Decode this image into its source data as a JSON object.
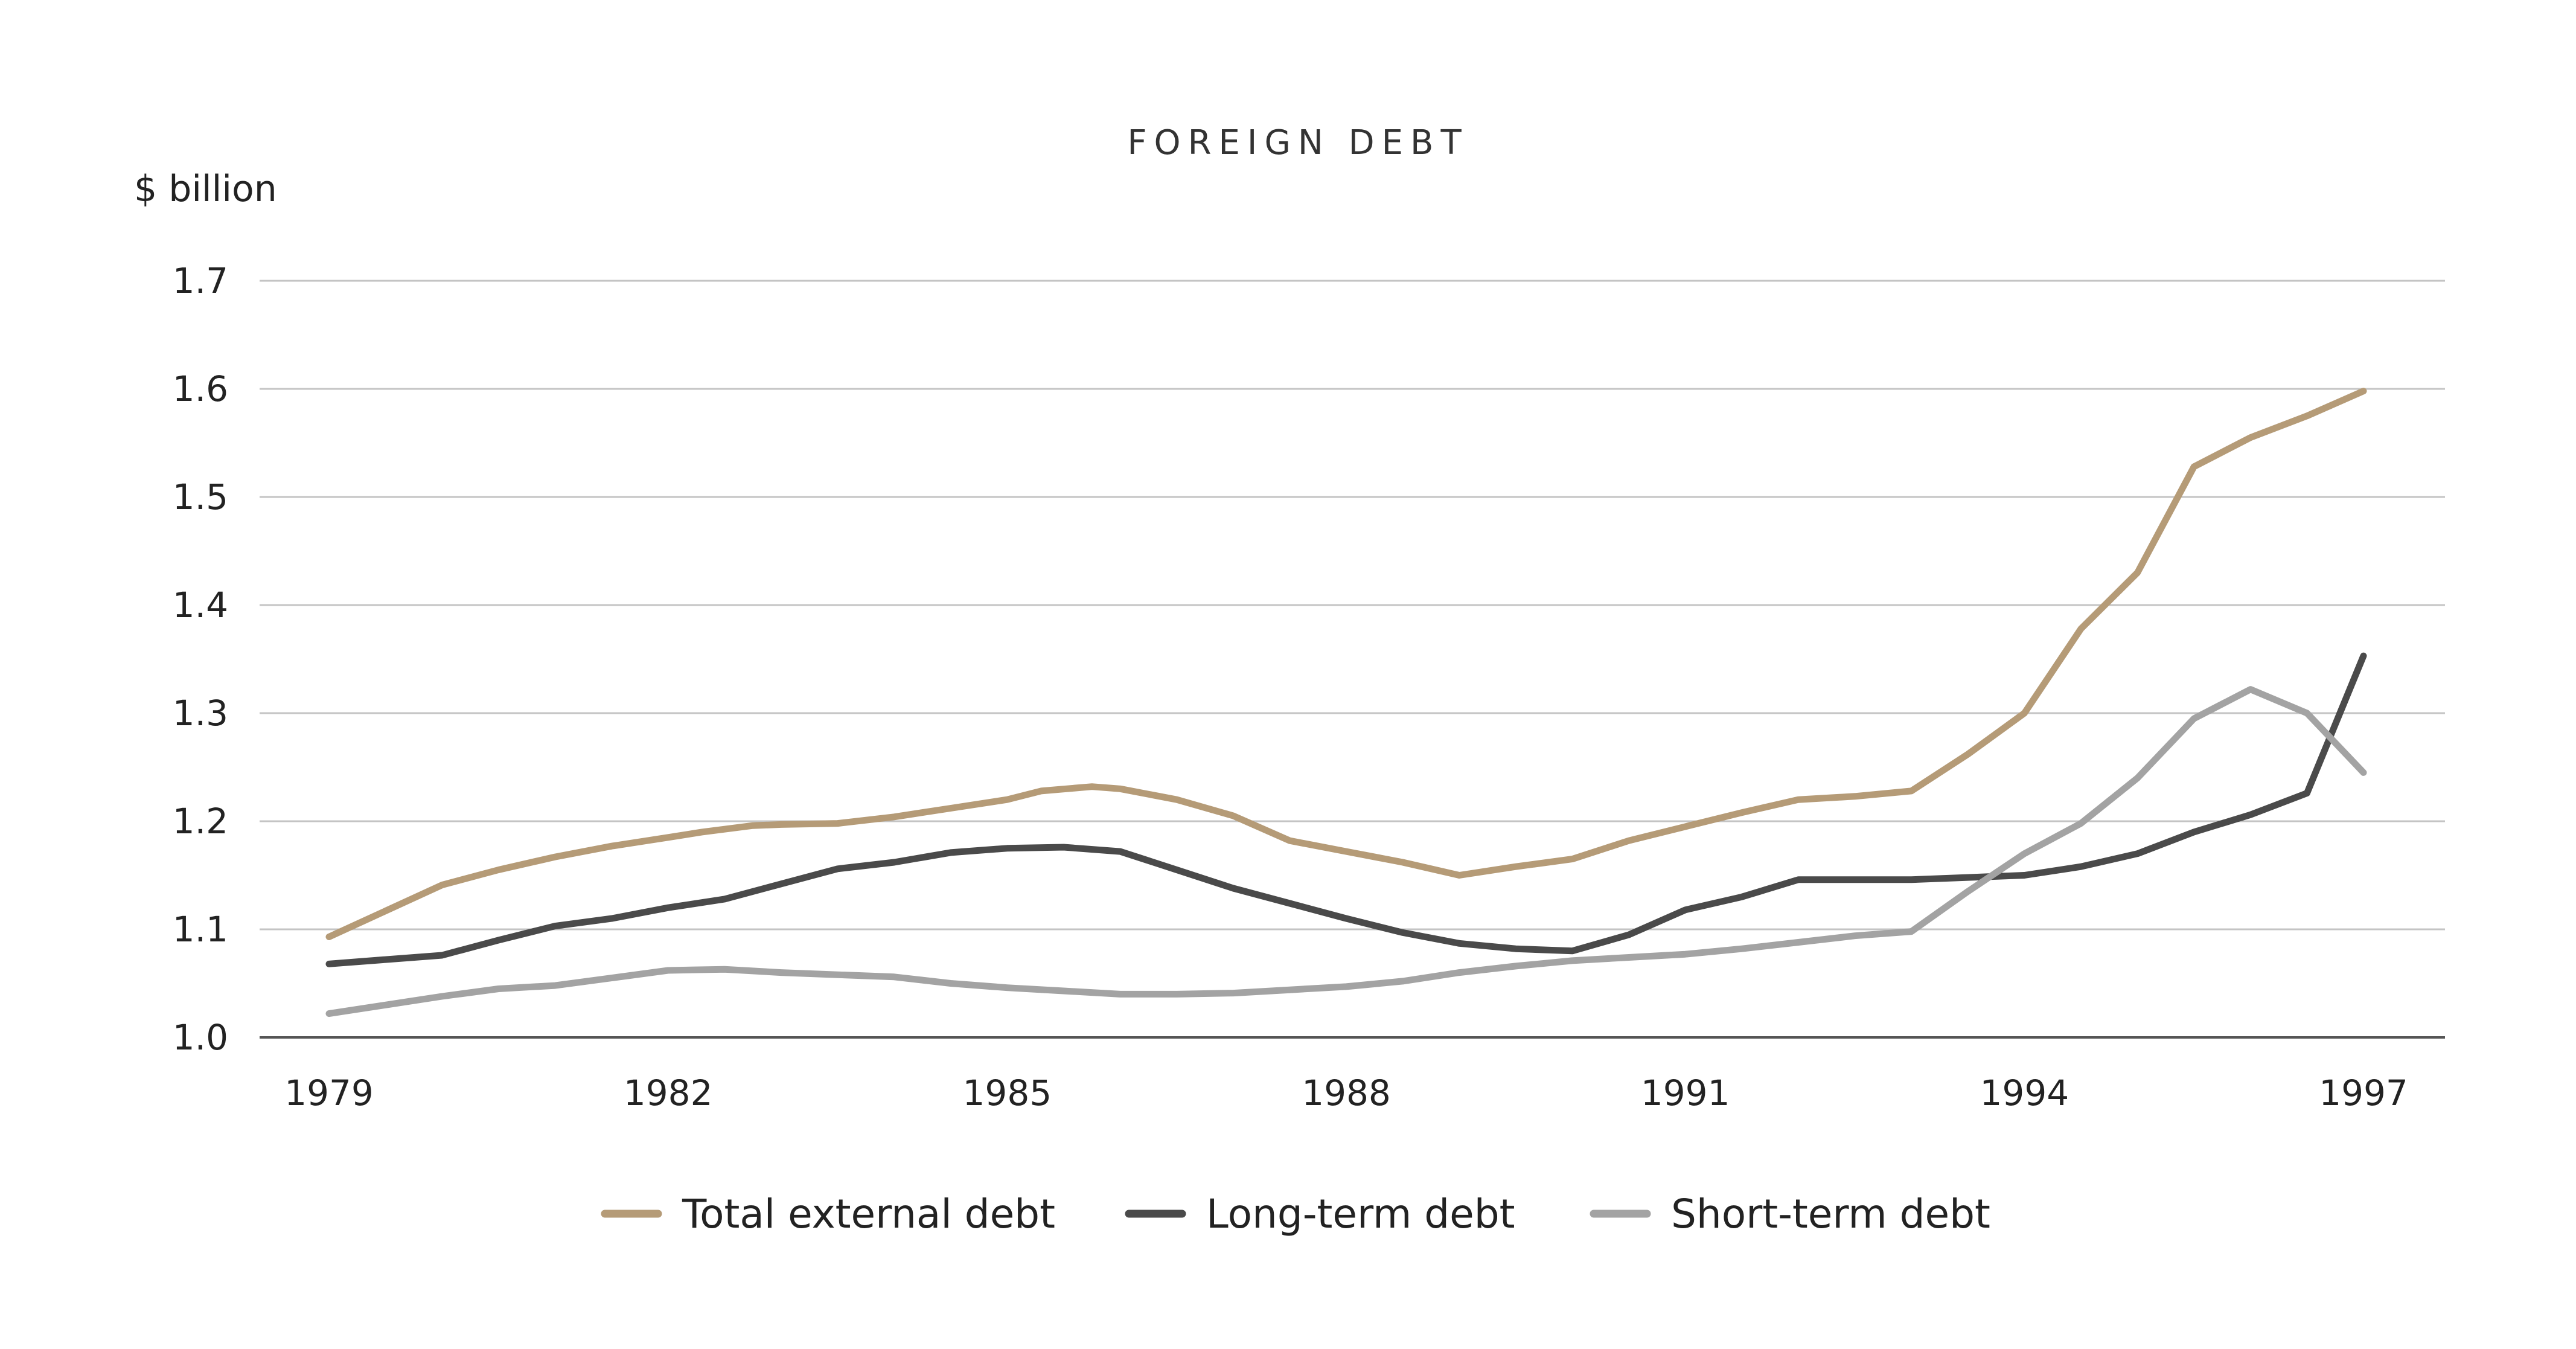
{
  "chart_data": {
    "type": "line",
    "title": "FOREIGN DEBT",
    "ylabel": "$ billion",
    "xlabel": "",
    "ylim": [
      1.0,
      1.7
    ],
    "yticks": [
      "1.0",
      "1.1",
      "1.2",
      "1.3",
      "1.4",
      "1.5",
      "1.6",
      "1.7"
    ],
    "xlim": [
      1979,
      1997
    ],
    "xticks": [
      "1979",
      "1982",
      "1985",
      "1988",
      "1991",
      "1994",
      "1997"
    ],
    "grid": true,
    "legend_position": "bottom",
    "series": [
      {
        "name": "Total external debt",
        "color": "#b59b77",
        "x": [
          1979,
          1980,
          1980.5,
          1981,
          1981.5,
          1982,
          1982.3,
          1982.75,
          1983,
          1983.5,
          1984,
          1984.5,
          1985,
          1985.3,
          1985.75,
          1986,
          1986.5,
          1987,
          1987.5,
          1988,
          1988.5,
          1989,
          1989.5,
          1990,
          1990.5,
          1991,
          1991.5,
          1992,
          1992.5,
          1993,
          1993.5,
          1994,
          1994.5,
          1995,
          1995.5,
          1996,
          1996.5,
          1997
        ],
        "values": [
          1.093,
          1.141,
          1.155,
          1.167,
          1.177,
          1.185,
          1.19,
          1.196,
          1.197,
          1.198,
          1.204,
          1.212,
          1.22,
          1.228,
          1.232,
          1.23,
          1.22,
          1.205,
          1.182,
          1.172,
          1.162,
          1.15,
          1.158,
          1.165,
          1.182,
          1.195,
          1.208,
          1.22,
          1.223,
          1.228,
          1.262,
          1.3,
          1.378,
          1.43,
          1.528,
          1.555,
          1.575,
          1.598
        ]
      },
      {
        "name": "Long-term debt",
        "color": "#4a4a4a",
        "x": [
          1979,
          1979.5,
          1980,
          1980.5,
          1981,
          1981.5,
          1982,
          1982.5,
          1983,
          1983.5,
          1984,
          1984.5,
          1985,
          1985.5,
          1986,
          1986.5,
          1987,
          1987.5,
          1988,
          1988.5,
          1989,
          1989.5,
          1990,
          1990.5,
          1991,
          1991.5,
          1992,
          1992.5,
          1993,
          1993.5,
          1994,
          1994.5,
          1995,
          1995.5,
          1996,
          1996.5,
          1997
        ],
        "values": [
          1.068,
          1.072,
          1.076,
          1.09,
          1.103,
          1.11,
          1.12,
          1.128,
          1.142,
          1.156,
          1.162,
          1.171,
          1.175,
          1.176,
          1.172,
          1.155,
          1.138,
          1.124,
          1.11,
          1.097,
          1.087,
          1.082,
          1.08,
          1.095,
          1.118,
          1.13,
          1.146,
          1.146,
          1.146,
          1.148,
          1.15,
          1.158,
          1.17,
          1.19,
          1.206,
          1.226,
          1.353
        ]
      },
      {
        "name": "Short-term debt",
        "color": "#a3a3a3",
        "x": [
          1979,
          1979.5,
          1980,
          1980.5,
          1981,
          1981.5,
          1982,
          1982.5,
          1983,
          1983.5,
          1984,
          1984.5,
          1985,
          1985.5,
          1986,
          1986.5,
          1987,
          1987.5,
          1988,
          1988.5,
          1989,
          1989.5,
          1990,
          1990.5,
          1991,
          1991.5,
          1992,
          1992.5,
          1993,
          1993.5,
          1994,
          1994.5,
          1995,
          1995.5,
          1996,
          1996.5,
          1997
        ],
        "values": [
          1.022,
          1.03,
          1.038,
          1.045,
          1.048,
          1.055,
          1.062,
          1.063,
          1.06,
          1.058,
          1.056,
          1.05,
          1.046,
          1.043,
          1.04,
          1.04,
          1.041,
          1.044,
          1.047,
          1.052,
          1.06,
          1.066,
          1.071,
          1.074,
          1.077,
          1.082,
          1.088,
          1.094,
          1.098,
          1.135,
          1.17,
          1.198,
          1.24,
          1.295,
          1.322,
          1.3,
          1.245
        ]
      }
    ]
  }
}
